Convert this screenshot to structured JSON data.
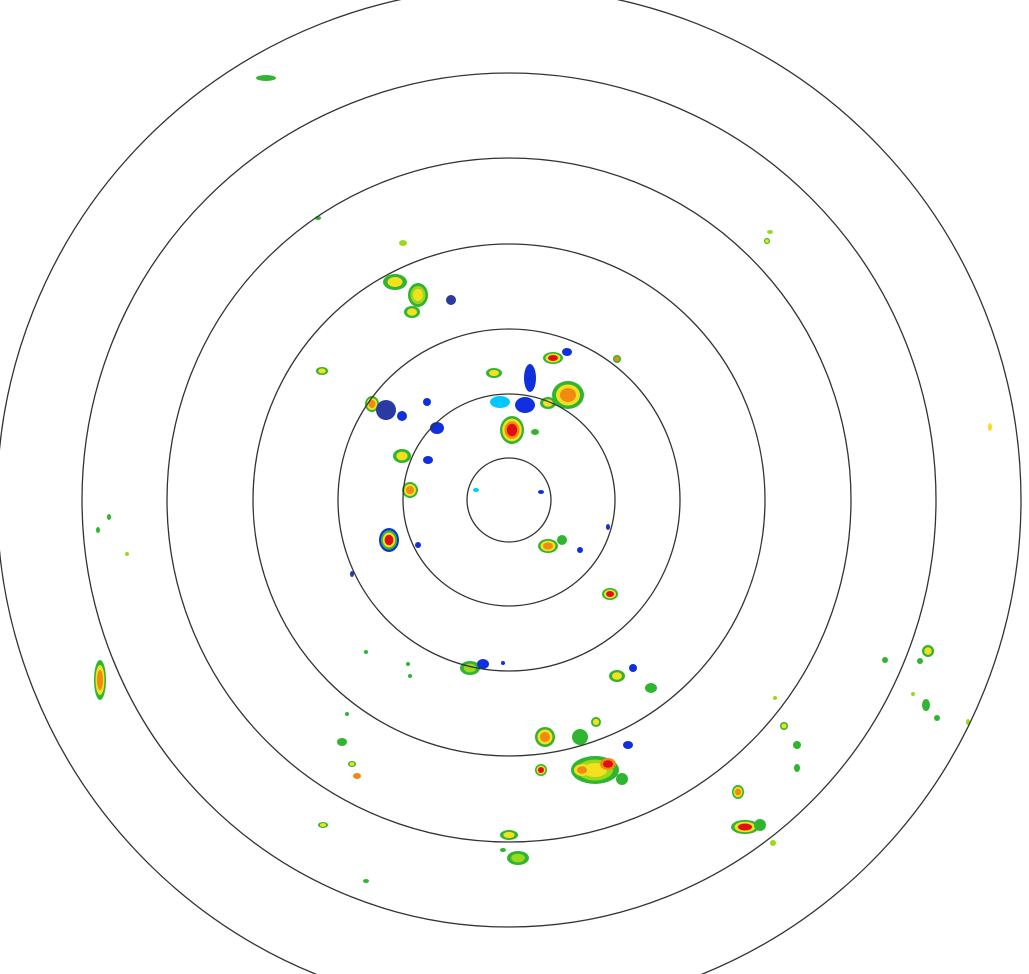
{
  "radar": {
    "range_ring_count": 7,
    "ring_color": "#333333",
    "background": "#ffffff",
    "echo_colors": {
      "very_light": "#00c8ff",
      "light": "#1030e0",
      "weak": "#2a3aa0",
      "moderate": "#2fb52f",
      "moderate_high": "#9ad81e",
      "strong": "#f5e020",
      "heavy": "#f08a10",
      "intense": "#e01010"
    }
  }
}
